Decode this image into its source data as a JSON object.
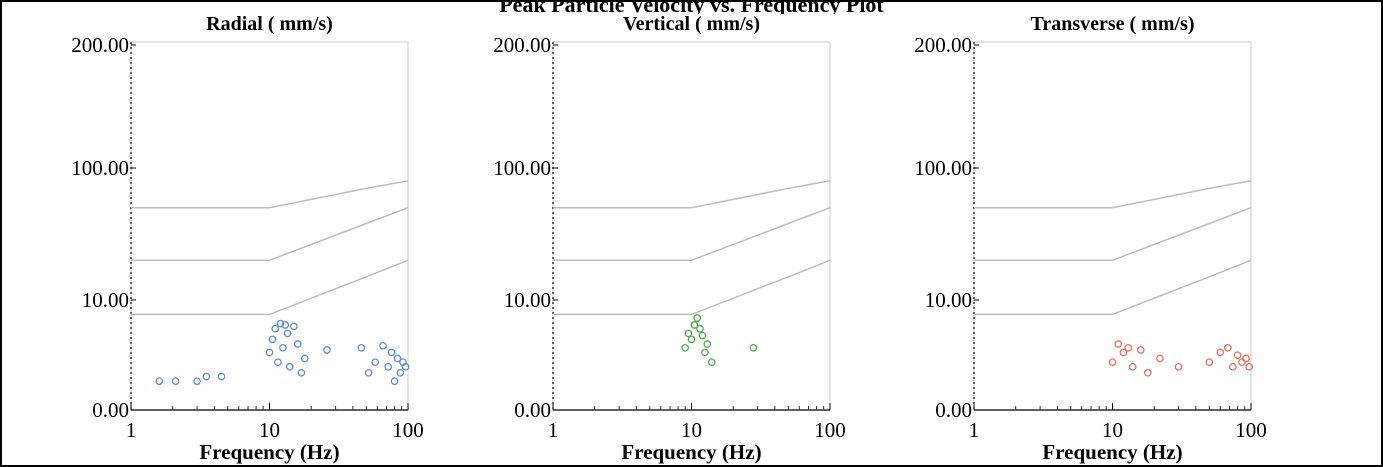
{
  "main_title": "Peak Particle Velocity vs. Frequency Plot",
  "chart_data": [
    {
      "type": "scatter",
      "title": "Radial ( mm/s)",
      "xlabel": "Frequency (Hz)",
      "ylabel": "",
      "x_scale": "log",
      "xlim": [
        1,
        100
      ],
      "ylim": [
        0,
        200
      ],
      "x_ticks": [
        "1",
        "10",
        "100"
      ],
      "y_ticks": [
        "200.00",
        "100.00",
        "10.00",
        "0.00"
      ],
      "marker_color": "#5b8fd6",
      "reference_curves": [
        {
          "x": [
            1,
            10,
            50,
            100
          ],
          "y": [
            50,
            50,
            70,
            80
          ]
        },
        {
          "x": [
            1,
            10,
            50,
            100
          ],
          "y": [
            20,
            20,
            38,
            50
          ]
        },
        {
          "x": [
            1,
            10,
            50,
            100
          ],
          "y": [
            5,
            5,
            15,
            20
          ]
        }
      ],
      "points": [
        {
          "x": 1.6,
          "y": 0.2
        },
        {
          "x": 2.1,
          "y": 0.2
        },
        {
          "x": 3.0,
          "y": 0.2
        },
        {
          "x": 3.5,
          "y": 0.25
        },
        {
          "x": 4.5,
          "y": 0.25
        },
        {
          "x": 10.0,
          "y": 0.8
        },
        {
          "x": 10.5,
          "y": 1.5
        },
        {
          "x": 11.0,
          "y": 2.5
        },
        {
          "x": 11.5,
          "y": 0.5
        },
        {
          "x": 12.0,
          "y": 3.2
        },
        {
          "x": 12.5,
          "y": 1.0
        },
        {
          "x": 13.0,
          "y": 3.0
        },
        {
          "x": 13.5,
          "y": 2.0
        },
        {
          "x": 14.0,
          "y": 0.4
        },
        {
          "x": 15.0,
          "y": 2.8
        },
        {
          "x": 16.0,
          "y": 1.2
        },
        {
          "x": 17.0,
          "y": 0.3
        },
        {
          "x": 18.0,
          "y": 0.6
        },
        {
          "x": 26.0,
          "y": 0.9
        },
        {
          "x": 46.0,
          "y": 1.0
        },
        {
          "x": 52.0,
          "y": 0.3
        },
        {
          "x": 58.0,
          "y": 0.5
        },
        {
          "x": 66.0,
          "y": 1.1
        },
        {
          "x": 72.0,
          "y": 0.4
        },
        {
          "x": 76.0,
          "y": 0.8
        },
        {
          "x": 80.0,
          "y": 0.2
        },
        {
          "x": 84.0,
          "y": 0.6
        },
        {
          "x": 88.0,
          "y": 0.3
        },
        {
          "x": 92.0,
          "y": 0.5
        },
        {
          "x": 96.0,
          "y": 0.4
        }
      ]
    },
    {
      "type": "scatter",
      "title": "Vertical ( mm/s)",
      "xlabel": "Frequency (Hz)",
      "ylabel": "",
      "x_scale": "log",
      "xlim": [
        1,
        100
      ],
      "ylim": [
        0,
        200
      ],
      "x_ticks": [
        "1",
        "10",
        "100"
      ],
      "y_ticks": [
        "200.00",
        "100.00",
        "10.00",
        "0.00"
      ],
      "marker_color": "#4caf50",
      "reference_curves": [
        {
          "x": [
            1,
            10,
            50,
            100
          ],
          "y": [
            50,
            50,
            70,
            80
          ]
        },
        {
          "x": [
            1,
            10,
            50,
            100
          ],
          "y": [
            20,
            20,
            38,
            50
          ]
        },
        {
          "x": [
            1,
            10,
            50,
            100
          ],
          "y": [
            5,
            5,
            15,
            20
          ]
        }
      ],
      "points": [
        {
          "x": 9.0,
          "y": 1.0
        },
        {
          "x": 9.5,
          "y": 2.0
        },
        {
          "x": 10.0,
          "y": 1.5
        },
        {
          "x": 10.5,
          "y": 3.0
        },
        {
          "x": 11.0,
          "y": 4.2
        },
        {
          "x": 11.5,
          "y": 2.5
        },
        {
          "x": 12.0,
          "y": 1.8
        },
        {
          "x": 12.5,
          "y": 0.8
        },
        {
          "x": 13.0,
          "y": 1.2
        },
        {
          "x": 14.0,
          "y": 0.5
        },
        {
          "x": 28.0,
          "y": 1.0
        }
      ]
    },
    {
      "type": "scatter",
      "title": "Transverse ( mm/s)",
      "xlabel": "Frequency (Hz)",
      "ylabel": "",
      "x_scale": "log",
      "xlim": [
        1,
        100
      ],
      "ylim": [
        0,
        200
      ],
      "x_ticks": [
        "1",
        "10",
        "100"
      ],
      "y_ticks": [
        "200.00",
        "100.00",
        "10.00",
        "0.00"
      ],
      "marker_color": "#ef6f5e",
      "reference_curves": [
        {
          "x": [
            1,
            10,
            50,
            100
          ],
          "y": [
            50,
            50,
            70,
            80
          ]
        },
        {
          "x": [
            1,
            10,
            50,
            100
          ],
          "y": [
            20,
            20,
            38,
            50
          ]
        },
        {
          "x": [
            1,
            10,
            50,
            100
          ],
          "y": [
            5,
            5,
            15,
            20
          ]
        }
      ],
      "points": [
        {
          "x": 10.0,
          "y": 0.5
        },
        {
          "x": 11.0,
          "y": 1.2
        },
        {
          "x": 12.0,
          "y": 0.8
        },
        {
          "x": 13.0,
          "y": 1.0
        },
        {
          "x": 14.0,
          "y": 0.4
        },
        {
          "x": 16.0,
          "y": 0.9
        },
        {
          "x": 18.0,
          "y": 0.3
        },
        {
          "x": 22.0,
          "y": 0.6
        },
        {
          "x": 30.0,
          "y": 0.4
        },
        {
          "x": 50.0,
          "y": 0.5
        },
        {
          "x": 60.0,
          "y": 0.8
        },
        {
          "x": 68.0,
          "y": 1.0
        },
        {
          "x": 74.0,
          "y": 0.4
        },
        {
          "x": 80.0,
          "y": 0.7
        },
        {
          "x": 86.0,
          "y": 0.5
        },
        {
          "x": 92.0,
          "y": 0.6
        },
        {
          "x": 97.0,
          "y": 0.4
        }
      ]
    }
  ]
}
